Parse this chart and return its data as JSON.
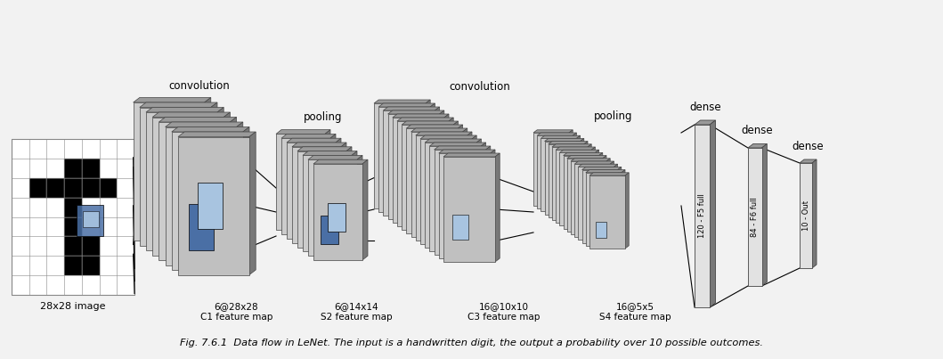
{
  "bg_color": "#f2f2f2",
  "caption": "Fig. 7.6.1  Data flow in LeNet. The input is a handwritten digit, the output a probability over 10 possible outcomes.",
  "input_label": "28x28 image",
  "c1_label": "6@28x28\nC1 feature map",
  "s2_label": "6@14x14\nS2 feature map",
  "c3_label": "16@10x10\nC3 feature map",
  "s4_label": "16@5x5\nS4 feature map",
  "f5_label": "120 - F5 full",
  "f6_label": "84 - F6 full",
  "out_label": "10 - Out",
  "conv1_label": "convolution",
  "pool1_label": "pooling",
  "conv2_label": "convolution",
  "pool2_label": "pooling",
  "dense1_label": "dense",
  "dense2_label": "dense",
  "dense3_label": "dense",
  "gray_dark": "#787878",
  "gray_mid": "#9a9a9a",
  "gray_light": "#b8b8b8",
  "gray_lighter": "#cccccc",
  "gray_lightest": "#e2e2e2",
  "gray_face": "#c0c0c0",
  "blue_dark": "#4a6fa5",
  "blue_light": "#a8c4e0",
  "white": "#ffffff",
  "black": "#000000",
  "ec": "#444444"
}
